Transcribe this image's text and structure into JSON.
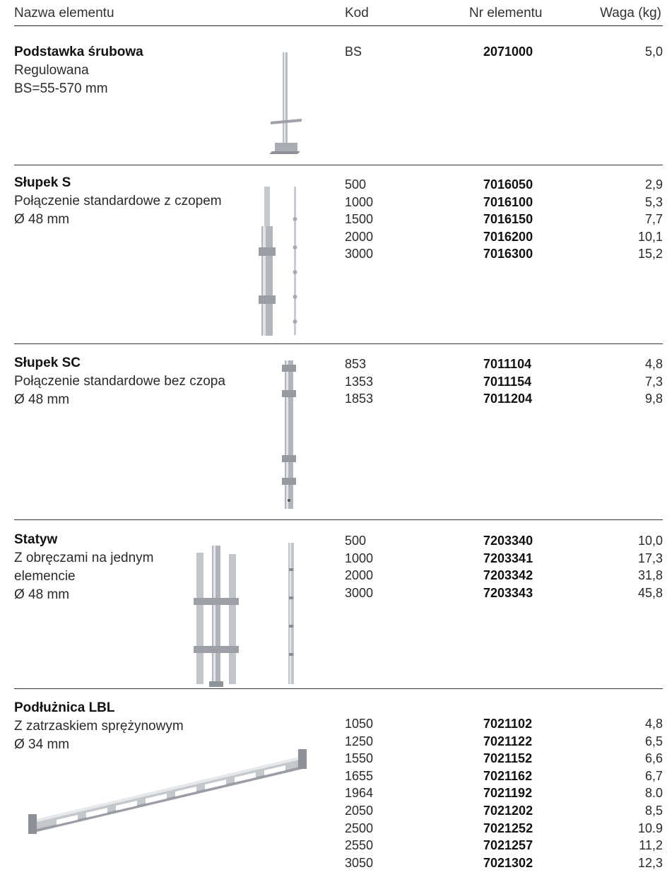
{
  "header": {
    "col_name": "Nazwa elementu",
    "col_kod": "Kod",
    "col_nr": "Nr elementu",
    "col_waga": "Waga (kg)"
  },
  "sections": [
    {
      "name": "Podstawka śrubowa",
      "desc": [
        "Regulowana",
        "BS=55-570 mm"
      ],
      "image": "screw-jack-base-image",
      "rows": [
        {
          "kod": "BS",
          "nr": "2071000",
          "waga": "5,0"
        }
      ]
    },
    {
      "name": "Słupek S",
      "desc": [
        "Połączenie standardowe z czopem",
        "Ø 48 mm"
      ],
      "image": "standard-post-with-spigot-image",
      "rows": [
        {
          "kod": "500",
          "nr": "7016050",
          "waga": "2,9"
        },
        {
          "kod": "1000",
          "nr": "7016100",
          "waga": "5,3"
        },
        {
          "kod": "1500",
          "nr": "7016150",
          "waga": "7,7"
        },
        {
          "kod": "2000",
          "nr": "7016200",
          "waga": "10,1"
        },
        {
          "kod": "3000",
          "nr": "7016300",
          "waga": "15,2"
        }
      ]
    },
    {
      "name": "Słupek SC",
      "desc": [
        "Połączenie standardowe bez czopa",
        "Ø 48 mm"
      ],
      "image": "standard-post-without-spigot-image",
      "rows": [
        {
          "kod": "853",
          "nr": "7011104",
          "waga": "4,8"
        },
        {
          "kod": "1353",
          "nr": "7011154",
          "waga": "7,3"
        },
        {
          "kod": "1853",
          "nr": "7011204",
          "waga": "9,8"
        }
      ]
    },
    {
      "name": "Statyw",
      "desc": [
        "Z obręczami na jednym",
        "elemencie",
        "Ø 48 mm"
      ],
      "image": "tripod-post-image",
      "rows": [
        {
          "kod": "500",
          "nr": "7203340",
          "waga": "10,0"
        },
        {
          "kod": "1000",
          "nr": "7203341",
          "waga": "17,3"
        },
        {
          "kod": "2000",
          "nr": "7203342",
          "waga": "31,8"
        },
        {
          "kod": "3000",
          "nr": "7203343",
          "waga": "45,8"
        }
      ]
    },
    {
      "name": "Podłużnica LBL",
      "desc": [
        "Z zatrzaskiem sprężynowym",
        "Ø 34 mm"
      ],
      "image": "ledger-lbl-image",
      "rows": [
        {
          "kod": "1050",
          "nr": "7021102",
          "waga": "4,8"
        },
        {
          "kod": "1250",
          "nr": "7021122",
          "waga": "6,5"
        },
        {
          "kod": "1550",
          "nr": "7021152",
          "waga": "6,6"
        },
        {
          "kod": "1655",
          "nr": "7021162",
          "waga": "6,7"
        },
        {
          "kod": "1964",
          "nr": "7021192",
          "waga": "8.0"
        },
        {
          "kod": "2050",
          "nr": "7021202",
          "waga": "8,5"
        },
        {
          "kod": "2500",
          "nr": "7021252",
          "waga": "10.9"
        },
        {
          "kod": "2550",
          "nr": "7021257",
          "waga": "11,2"
        },
        {
          "kod": "3050",
          "nr": "7021302",
          "waga": "12,3"
        }
      ]
    }
  ]
}
